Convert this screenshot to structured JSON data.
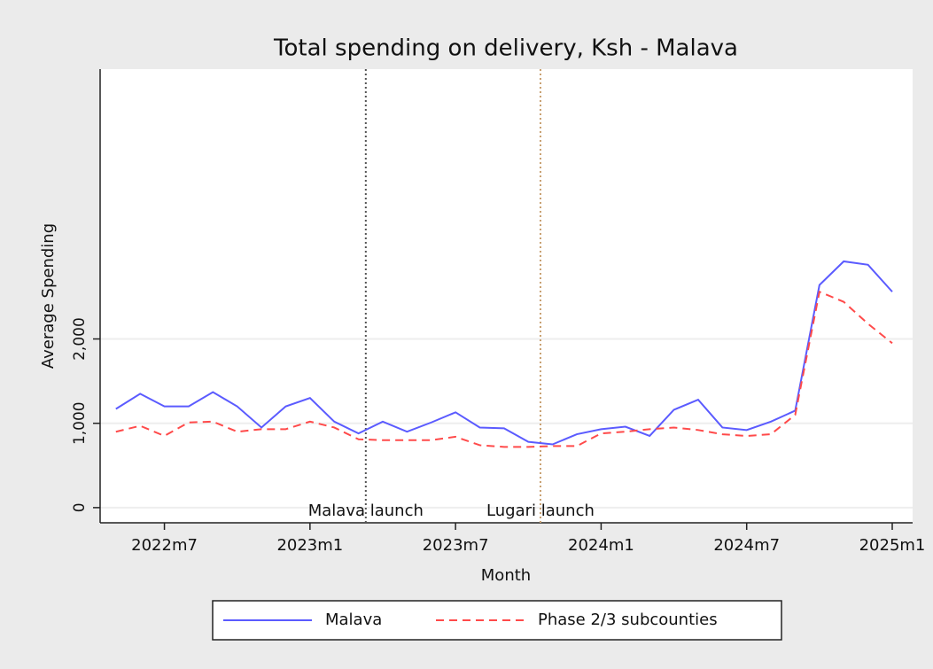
{
  "chart_data": {
    "type": "line",
    "title": "Total spending on delivery, Ksh - Malava",
    "x_label": "Month",
    "y_label": "Average Spending",
    "x": [
      748,
      749,
      750,
      751,
      752,
      753,
      754,
      755,
      756,
      757,
      758,
      759,
      760,
      761,
      762,
      763,
      764,
      765,
      766,
      767,
      768,
      769,
      770,
      771,
      772,
      773,
      774,
      775,
      776,
      777,
      778,
      779,
      780
    ],
    "series": [
      {
        "name": "Malava",
        "color": "#5b5bff",
        "dash": false,
        "values": [
          1170,
          1350,
          1200,
          1200,
          1370,
          1200,
          950,
          1200,
          1300,
          1020,
          880,
          1020,
          900,
          1010,
          1130,
          950,
          940,
          780,
          750,
          870,
          930,
          960,
          850,
          1160,
          1280,
          950,
          920,
          1020,
          1150,
          2640,
          2920,
          2880,
          2560
        ]
      },
      {
        "name": "Phase 2/3 subcounties",
        "color": "#ff4a4a",
        "dash": true,
        "values": [
          900,
          970,
          850,
          1010,
          1020,
          900,
          930,
          930,
          1020,
          950,
          810,
          800,
          800,
          800,
          840,
          740,
          720,
          720,
          730,
          730,
          880,
          900,
          930,
          950,
          920,
          870,
          850,
          870,
          1100,
          2560,
          2440,
          2180,
          1950
        ]
      }
    ],
    "xlim": [
      747.35,
      780.84
    ],
    "ylim": [
      -180,
      5200
    ],
    "xticks": [
      {
        "value": 750,
        "label": "2022m7"
      },
      {
        "value": 756,
        "label": "2023m1"
      },
      {
        "value": 762,
        "label": "2023m7"
      },
      {
        "value": 768,
        "label": "2024m1"
      },
      {
        "value": 774,
        "label": "2024m7"
      },
      {
        "value": 780,
        "label": "2025m1"
      }
    ],
    "yticks": [
      0,
      {
        "value": 1000,
        "label": "1,000"
      },
      {
        "value": 2000,
        "label": "2,000"
      }
    ],
    "grid": true,
    "legend": "bottom",
    "events": [
      {
        "label": "Malava launch",
        "x": 758.3,
        "color": "#555555"
      },
      {
        "label": "Lugari launch",
        "x": 765.5,
        "color": "#c8a070"
      }
    ]
  }
}
